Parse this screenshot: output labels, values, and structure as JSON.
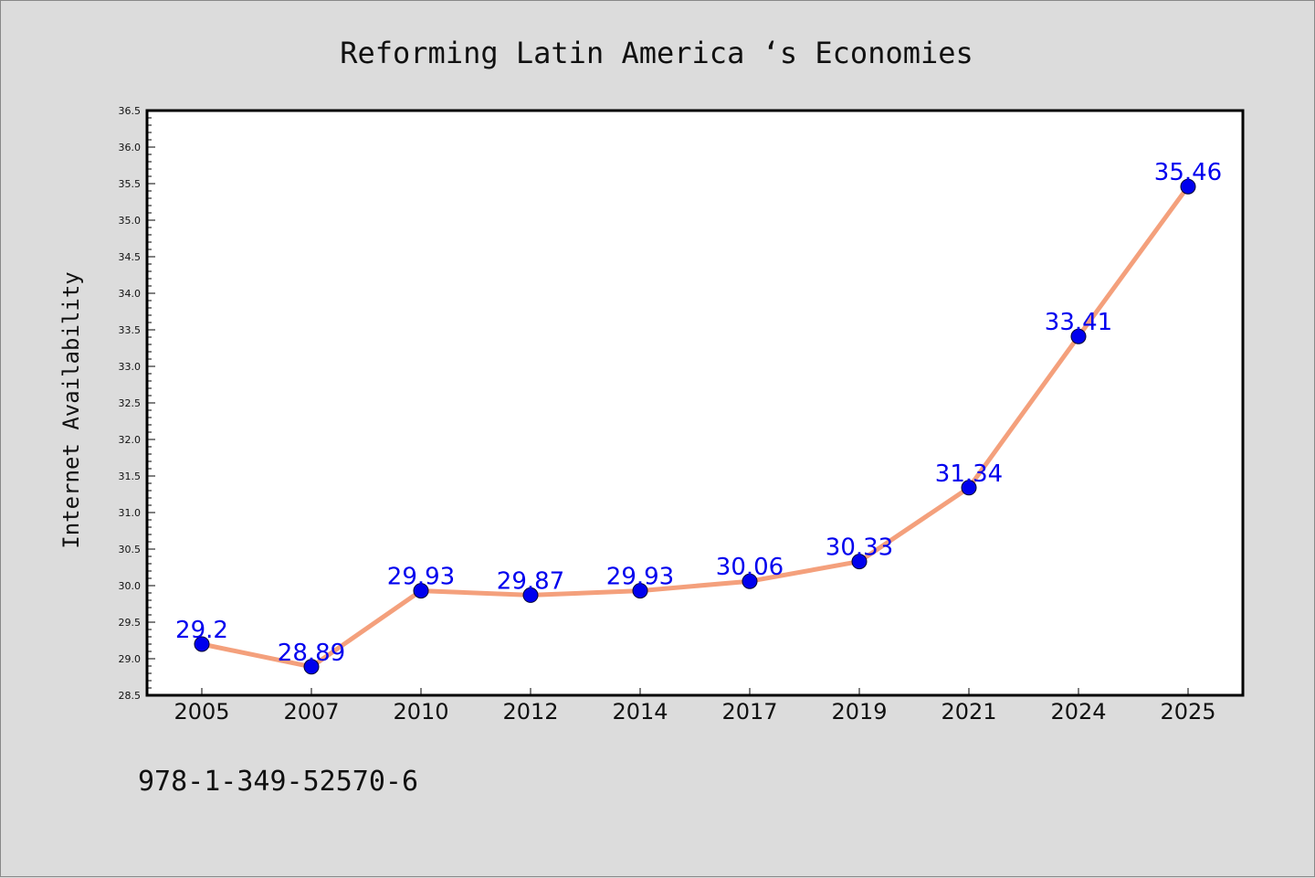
{
  "chart_data": {
    "type": "line",
    "title": "Reforming Latin America ‘s Economies",
    "xlabel": "",
    "ylabel": "Internet Availability",
    "categories": [
      "2005",
      "2007",
      "2010",
      "2012",
      "2014",
      "2017",
      "2019",
      "2021",
      "2024",
      "2025"
    ],
    "series": [
      {
        "values": [
          29.2,
          28.89,
          29.93,
          29.87,
          29.93,
          30.06,
          30.33,
          31.34,
          33.41,
          35.46
        ],
        "data_labels": [
          "29.2",
          "28.89",
          "29.93",
          "29.87",
          "29.93",
          "30.06",
          "30.33",
          "31.34",
          "33.41",
          "35.46"
        ],
        "line_color": "#f4a07c",
        "marker_color": "#0000ee",
        "label_color": "#0000ee"
      }
    ],
    "ylim": [
      28.5,
      36.5
    ],
    "yticks": [
      "28.5",
      "29.0",
      "29.5",
      "30.0",
      "30.5",
      "31.0",
      "31.5",
      "32.0",
      "32.5",
      "33.0",
      "33.5",
      "34.0",
      "34.5",
      "35.0",
      "35.5",
      "36.0",
      "36.5"
    ],
    "grid": false,
    "legend": "none"
  },
  "footer": {
    "code": "978-1-349-52570-6"
  },
  "colors": {
    "background": "#dcdcdc",
    "plot_background": "#ffffff",
    "axis": "#000000"
  }
}
